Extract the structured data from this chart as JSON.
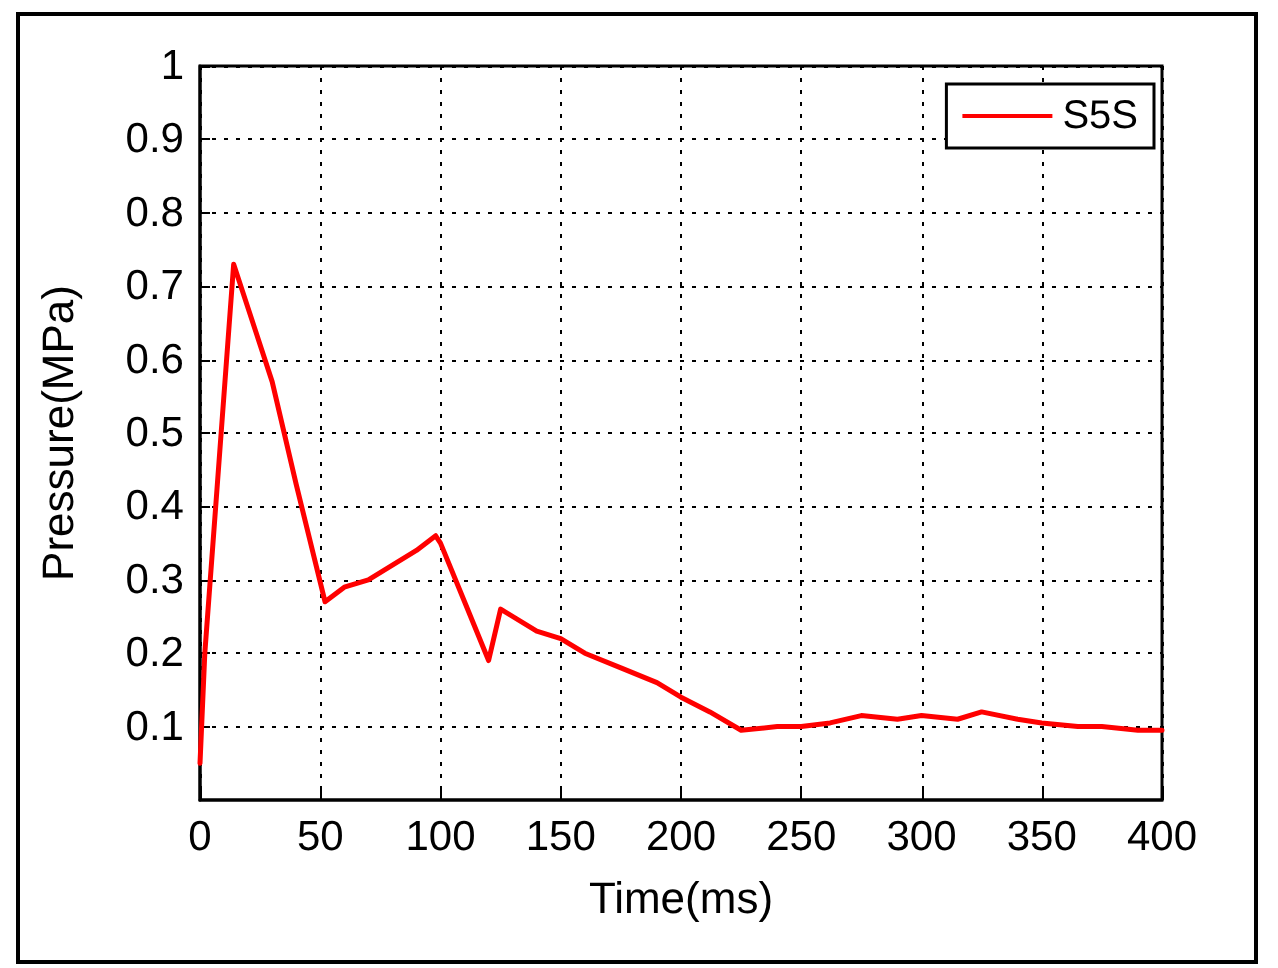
{
  "chart_data": {
    "type": "line",
    "xlabel": "Time(ms)",
    "ylabel": "Pressure(MPa)",
    "x": [
      0,
      2,
      14,
      20,
      30,
      40,
      52,
      60,
      70,
      80,
      90,
      98,
      100,
      110,
      120,
      125,
      140,
      150,
      160,
      175,
      190,
      200,
      212,
      225,
      240,
      250,
      262,
      275,
      290,
      300,
      315,
      325,
      340,
      350,
      365,
      375,
      390,
      400
    ],
    "series": [
      {
        "name": "S5S",
        "color": "#ff0000",
        "values": [
          0.05,
          0.2,
          0.73,
          0.67,
          0.57,
          0.43,
          0.27,
          0.29,
          0.3,
          0.32,
          0.34,
          0.36,
          0.35,
          0.27,
          0.19,
          0.26,
          0.23,
          0.22,
          0.2,
          0.18,
          0.16,
          0.14,
          0.12,
          0.095,
          0.1,
          0.1,
          0.105,
          0.115,
          0.11,
          0.115,
          0.11,
          0.12,
          0.11,
          0.105,
          0.1,
          0.1,
          0.095,
          0.095
        ]
      }
    ],
    "xlim": [
      0,
      400
    ],
    "xticks": [
      0,
      50,
      100,
      150,
      200,
      250,
      300,
      350,
      400
    ],
    "ylim": [
      0,
      1
    ],
    "yticks": [
      0.1,
      0.2,
      0.3,
      0.4,
      0.5,
      0.6,
      0.7,
      0.8,
      0.9,
      1
    ],
    "grid": true,
    "legend": "top right",
    "marker": "none",
    "line_style": "solid"
  }
}
